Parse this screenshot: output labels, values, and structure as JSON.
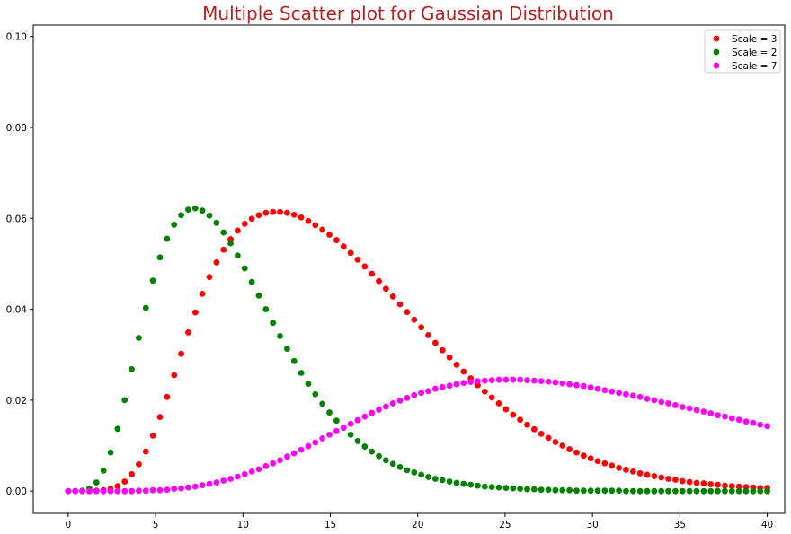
{
  "chart_data": {
    "type": "scatter",
    "title": "Multiple Scatter plot for Gaussian Distribution",
    "xlabel": "",
    "ylabel": "",
    "xlim": [
      -2,
      41
    ],
    "ylim": [
      -0.0049,
      0.1025
    ],
    "x_ticks": [
      0,
      5,
      10,
      15,
      20,
      25,
      30,
      35,
      40
    ],
    "x_tick_labels": [
      "0",
      "5",
      "10",
      "15",
      "20",
      "25",
      "30",
      "35",
      "40"
    ],
    "y_ticks": [
      0.0,
      0.02,
      0.04,
      0.06,
      0.08,
      0.1
    ],
    "y_tick_labels": [
      "0.00",
      "0.02",
      "0.04",
      "0.06",
      "0.08",
      "0.10"
    ],
    "grid": false,
    "legend_position": "top-right",
    "x_start": 0,
    "x_end": 40,
    "n_points": 100,
    "series": [
      {
        "name": "Scale = 3",
        "color": "#ff0000",
        "values": [
          0.0,
          0.0,
          0.0,
          0.0,
          0.0001,
          0.0002,
          0.0005,
          0.0011,
          0.0021,
          0.0037,
          0.0059,
          0.0087,
          0.0122,
          0.0163,
          0.0207,
          0.0255,
          0.0302,
          0.0349,
          0.0393,
          0.0434,
          0.0471,
          0.0503,
          0.0531,
          0.0554,
          0.0573,
          0.0588,
          0.0599,
          0.0607,
          0.0612,
          0.0614,
          0.0614,
          0.0612,
          0.0608,
          0.0602,
          0.0594,
          0.0585,
          0.0575,
          0.0564,
          0.0552,
          0.0538,
          0.0524,
          0.0509,
          0.0494,
          0.0478,
          0.0462,
          0.0445,
          0.0428,
          0.0411,
          0.0394,
          0.0377,
          0.036,
          0.0343,
          0.0326,
          0.031,
          0.0294,
          0.0278,
          0.0263,
          0.0248,
          0.0233,
          0.0219,
          0.0206,
          0.0193,
          0.018,
          0.0168,
          0.0157,
          0.0146,
          0.0136,
          0.0126,
          0.0117,
          0.0108,
          0.01,
          0.0092,
          0.0085,
          0.0078,
          0.0072,
          0.0066,
          0.0061,
          0.0056,
          0.0051,
          0.0047,
          0.0043,
          0.0039,
          0.0036,
          0.0033,
          0.003,
          0.0027,
          0.0025,
          0.0022,
          0.002,
          0.0018,
          0.0017,
          0.0015,
          0.0014,
          0.0012,
          0.0011,
          0.001,
          0.0009,
          0.0008,
          0.0007,
          0.0007
        ]
      },
      {
        "name": "Scale = 2",
        "color": "#008000",
        "values": [
          0.0,
          0.0,
          0.0001,
          0.0006,
          0.0019,
          0.0045,
          0.0085,
          0.0137,
          0.02,
          0.0268,
          0.0337,
          0.0403,
          0.0463,
          0.0514,
          0.0555,
          0.0586,
          0.0607,
          0.0619,
          0.0622,
          0.0617,
          0.0606,
          0.059,
          0.0569,
          0.0545,
          0.0518,
          0.049,
          0.046,
          0.043,
          0.04,
          0.037,
          0.0341,
          0.0313,
          0.0286,
          0.026,
          0.0236,
          0.0213,
          0.0192,
          0.0173,
          0.0155,
          0.0139,
          0.0124,
          0.011,
          0.0098,
          0.0087,
          0.0077,
          0.0068,
          0.006,
          0.0053,
          0.0046,
          0.0041,
          0.0036,
          0.0031,
          0.0027,
          0.0024,
          0.0021,
          0.0018,
          0.0016,
          0.0014,
          0.0012,
          0.001,
          0.0009,
          0.0008,
          0.0007,
          0.0006,
          0.0005,
          0.0004,
          0.0004,
          0.0003,
          0.0003,
          0.0002,
          0.0002,
          0.0002,
          0.0001,
          0.0001,
          0.0001,
          0.0001,
          0.0001,
          0.0001,
          0.0001,
          0.0,
          0.0,
          0.0,
          0.0,
          0.0,
          0.0,
          0.0,
          0.0,
          0.0,
          0.0,
          0.0,
          0.0,
          0.0,
          0.0,
          0.0,
          0.0,
          0.0,
          0.0,
          0.0,
          0.0,
          0.0
        ]
      },
      {
        "name": "Scale = 7",
        "color": "#ff00ff",
        "values": [
          0.0,
          0.0,
          0.0,
          0.0,
          0.0,
          0.0,
          0.0,
          0.0,
          0.0,
          0.0,
          0.0001,
          0.0001,
          0.0002,
          0.0002,
          0.0003,
          0.0005,
          0.0006,
          0.0008,
          0.001,
          0.0013,
          0.0016,
          0.0019,
          0.0023,
          0.0027,
          0.0032,
          0.0037,
          0.0043,
          0.0048,
          0.0055,
          0.0061,
          0.0068,
          0.0076,
          0.0083,
          0.0091,
          0.0099,
          0.0107,
          0.0116,
          0.0124,
          0.0132,
          0.014,
          0.0148,
          0.0156,
          0.0164,
          0.0172,
          0.0179,
          0.0186,
          0.0193,
          0.0199,
          0.0205,
          0.0211,
          0.0216,
          0.022,
          0.0225,
          0.0229,
          0.0232,
          0.0235,
          0.0238,
          0.024,
          0.0242,
          0.0243,
          0.0244,
          0.0245,
          0.0245,
          0.0245,
          0.0245,
          0.0244,
          0.0243,
          0.0242,
          0.0241,
          0.0239,
          0.0237,
          0.0235,
          0.0233,
          0.0231,
          0.0228,
          0.0225,
          0.0222,
          0.0219,
          0.0216,
          0.0213,
          0.021,
          0.0207,
          0.0203,
          0.02,
          0.0196,
          0.0193,
          0.0189,
          0.0185,
          0.0182,
          0.0178,
          0.0175,
          0.0171,
          0.0167,
          0.0164,
          0.016,
          0.0157,
          0.0153,
          0.015,
          0.0146,
          0.0143
        ]
      }
    ]
  }
}
